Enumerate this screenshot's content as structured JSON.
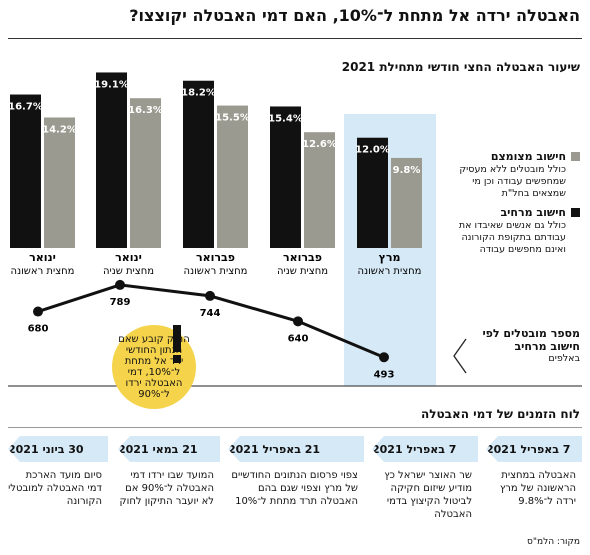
{
  "title": "האבטלה ירדה אל מתחת ל־10%, האם דמי האבטלה יקוצצו?",
  "chart_data": {
    "type": "bar",
    "title": "שיעור האבטלה החצי חודשי מתחילת 2021",
    "categories": [
      {
        "month": "ינואר",
        "half": "מחצית ראשונה"
      },
      {
        "month": "ינואר",
        "half": "מחצית שניה"
      },
      {
        "month": "פברואר",
        "half": "מחצית ראשונה"
      },
      {
        "month": "פברואר",
        "half": "מחצית שניה"
      },
      {
        "month": "מרץ",
        "half": "מחצית ראשונה"
      }
    ],
    "series": [
      {
        "name": "חישוב מרחיב",
        "values": [
          16.7,
          19.1,
          18.2,
          15.4,
          12.0
        ],
        "labels": [
          "16.7%",
          "19.1%",
          "18.2%",
          "15.4%",
          "12.0%"
        ],
        "color": "#111111"
      },
      {
        "name": "חישוב מצומצם",
        "values": [
          14.2,
          16.3,
          15.5,
          12.6,
          9.8
        ],
        "labels": [
          "14.2%",
          "16.3%",
          "15.5%",
          "12.6%",
          "9.8%"
        ],
        "color": "#9a9a90"
      }
    ],
    "ylim": [
      0,
      21
    ],
    "line": {
      "name": "מספר מובטלים לפי חישוב מרחיב",
      "unit": "באלפים",
      "values": [
        680,
        789,
        744,
        640,
        493
      ]
    },
    "highlight_category": 4,
    "highlight_color": "#d6e9f6"
  },
  "legend": {
    "narrow_title": "חישוב מצומצם",
    "narrow_desc": "כולל מובטלים ללא מעסיק שמחפשים עבודה וכן מי שמצאים בחל\"ת",
    "broad_title": "חישוב מרחיב",
    "broad_desc": "כולל גם אנשים שאיבדו את עבודתם בתקופת הקורונה ואינם מחפשים עבודה"
  },
  "count_label": {
    "title": "מספר מובטלים לפי חישוב מרחיב",
    "unit": "באלפים"
  },
  "callout": "החוק קובע שאם הנתון החודשי ירד אל מתחת ל־10%, דמי האבטלה ירדו ל־90%",
  "timeline": {
    "title": "לוח הזמנים של דמי האבטלה",
    "items": [
      {
        "date": "7 באפריל 2021",
        "text": "האבטלה במחצית הראשונה של מרץ ירדה ל־9.8%"
      },
      {
        "date": "7 באפריל 2021",
        "text": "שר האוצר ישראל כץ מודיע שיזום חקיקה לביטול הקיצוץ בדמי האבטלה"
      },
      {
        "date": "21 באפריל 2021",
        "text": "צפוי פרסום הנתונים החודשיים של מרץ וצפוי שגם בהם האבטלה תרד מתחת ל־10%"
      },
      {
        "date": "21 במאי 2021",
        "text": "המועד שבו ירדו דמי האבטלה ל־90% אם לא יועבר התיקון לחוק"
      },
      {
        "date": "30 ביוני 2021",
        "text": "סיום מועד הארכת דמי האבטלה למובטלי הקורונה"
      }
    ],
    "arrow_color": "#d6e9f6"
  },
  "source": "מקור: הלמ\"ס"
}
